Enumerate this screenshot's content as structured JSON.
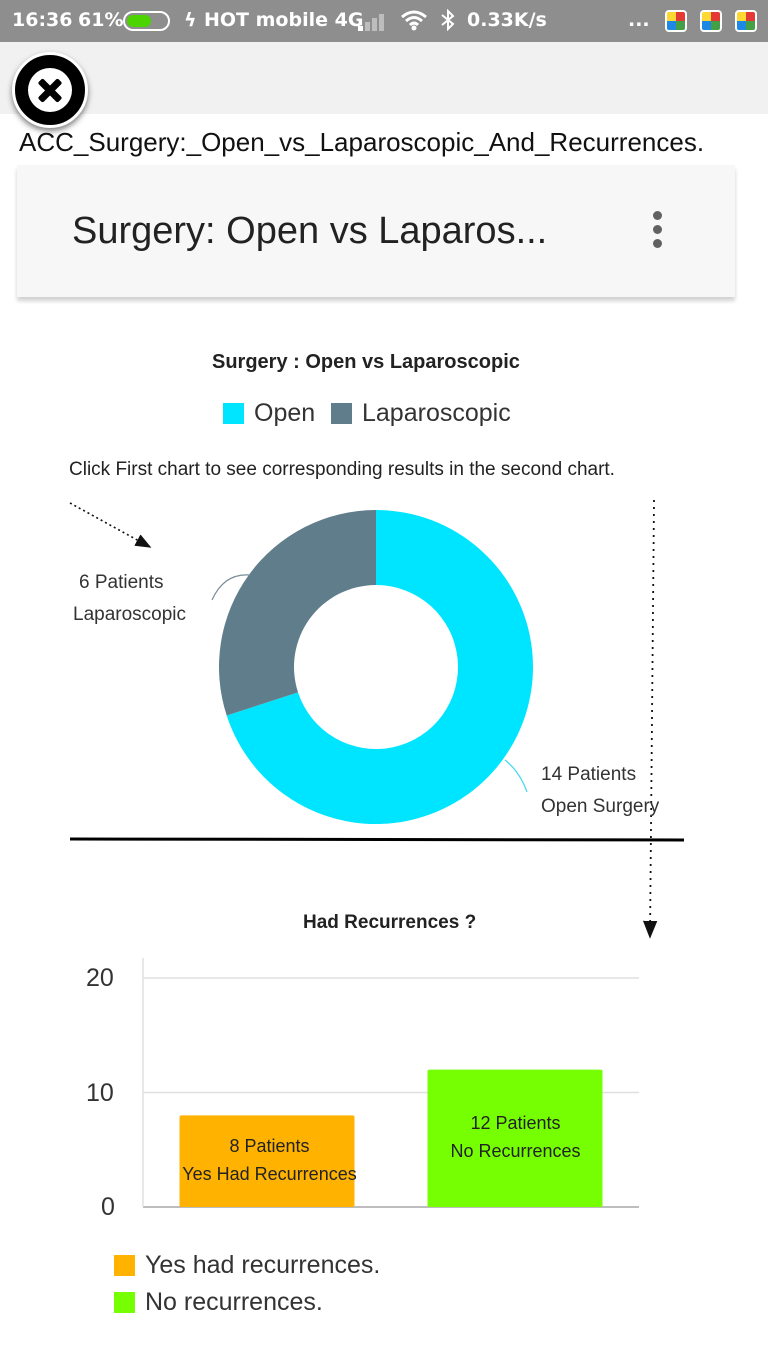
{
  "status_bar": {
    "time": "16:36",
    "battery_percent": "61%",
    "battery_level": 0.61,
    "carrier": "HOT mobile 4G",
    "network_speed": "0.33K/s",
    "overflow": "..."
  },
  "viewer": {
    "file_title": "ACC_Surgery:_Open_vs_Laparoscopic_And_Recurrences.",
    "close_icon": "close-icon"
  },
  "toolbar": {
    "title": "Surgery: Open vs Laparos...",
    "menu_icon": "more-vert-icon"
  },
  "donut": {
    "title": "Surgery : Open vs Laparoscopic",
    "legend": [
      {
        "label": "Open",
        "color": "#00e5ff"
      },
      {
        "label": "Laparoscopic",
        "color": "#607d8b"
      }
    ],
    "instruction": "Click First chart to see corresponding results in the second chart.",
    "label_lap_line1": "6  Patients",
    "label_lap_line2": "Laparoscopic",
    "label_open_line1": "14  Patients",
    "label_open_line2": "Open Surgery"
  },
  "bar": {
    "title": "Had Recurrences ?",
    "ticks": [
      "20",
      "10",
      "0"
    ],
    "bar1_line1": "8 Patients",
    "bar1_line2": "Yes Had Recurrences",
    "bar2_line1": "12 Patients",
    "bar2_line2": "No Recurrences",
    "legend": [
      {
        "label": "Yes  had recurrences.",
        "color": "#ffb300"
      },
      {
        "label": "No recurrences.",
        "color": "#76ff03"
      }
    ]
  },
  "chart_data": [
    {
      "type": "pie",
      "title": "Surgery : Open vs Laparoscopic",
      "categories": [
        "Open",
        "Laparoscopic"
      ],
      "values": [
        14,
        6
      ],
      "colors": [
        "#00e5ff",
        "#607d8b"
      ]
    },
    {
      "type": "bar",
      "title": "Had Recurrences ?",
      "categories": [
        "Yes had recurrences.",
        "No recurrences."
      ],
      "values": [
        8,
        12
      ],
      "colors": [
        "#ffb300",
        "#76ff03"
      ],
      "ylim": [
        0,
        20
      ],
      "yticks": [
        0,
        10,
        20
      ],
      "grid": true
    }
  ]
}
